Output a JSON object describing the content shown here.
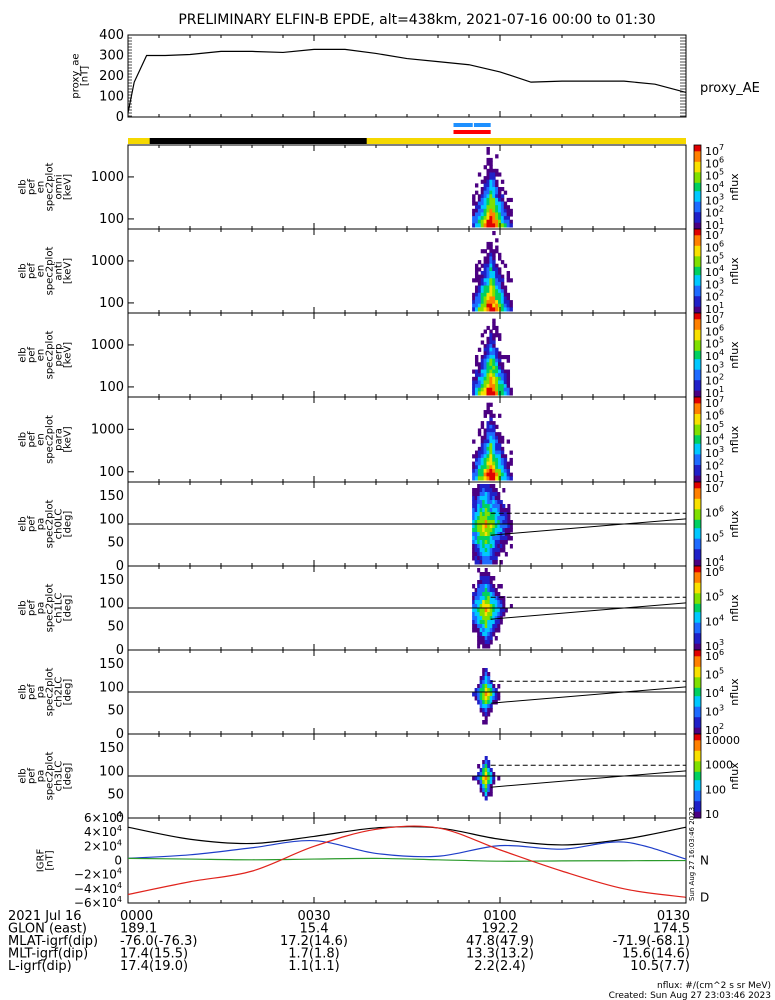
{
  "title": "PRELIMINARY ELFIN-B EPDE, alt=438km, 2021-07-16 00:00 to 01:30",
  "x_ticks": [
    "0000",
    "0030",
    "0100",
    "0130"
  ],
  "colors": {
    "yellow_bar": "#f5d800",
    "black_bar": "#000000",
    "blue_bar": "#1e90ff",
    "red_bar": "#ff0000",
    "igrf_n": "#2b9a2b",
    "igrf_d": "#e0231c",
    "igrf_blue": "#1f3ec9",
    "igrf_black": "#000000"
  },
  "ae_panel": {
    "ylabel": "proxy_ae\n[nT]",
    "yticks": [
      "400",
      "300",
      "200",
      "100",
      "0"
    ],
    "legend": "proxy_AE"
  },
  "spectro_panels": [
    {
      "id": "omni",
      "ylabel": "elb\npef\nen\nspec2plot\nomni\n[keV]",
      "yticks": [
        "1000",
        "100"
      ],
      "cbar_label": "nflux",
      "cbar_ticks": [
        "10^7",
        "10^6",
        "10^5",
        "10^4",
        "10^3",
        "10^2",
        "10^1"
      ]
    },
    {
      "id": "anti",
      "ylabel": "elb\npef\nen\nspec2plot\nanti\n[keV]",
      "yticks": [
        "1000",
        "100"
      ],
      "cbar_label": "nflux",
      "cbar_ticks": [
        "10^7",
        "10^6",
        "10^5",
        "10^4",
        "10^3",
        "10^2",
        "10^1"
      ]
    },
    {
      "id": "perp",
      "ylabel": "elb\npef\nen\nspec2plot\nperp\n[keV]",
      "yticks": [
        "1000",
        "100"
      ],
      "cbar_label": "nflux",
      "cbar_ticks": [
        "10^7",
        "10^6",
        "10^5",
        "10^4",
        "10^3",
        "10^2",
        "10^1"
      ]
    },
    {
      "id": "para",
      "ylabel": "elb\npef\nen\nspec2plot\npara\n[keV]",
      "yticks": [
        "1000",
        "100"
      ],
      "cbar_label": "nflux",
      "cbar_ticks": [
        "10^7",
        "10^6",
        "10^5",
        "10^4",
        "10^3",
        "10^2",
        "10^1"
      ]
    }
  ],
  "pa_panels": [
    {
      "id": "ch0LC",
      "ylabel": "elb\npef\npa\nspec2plot\nch0LC\n[deg]",
      "yticks": [
        "150",
        "100",
        "50",
        "0"
      ],
      "cbar_label": "nflux",
      "cbar_ticks": [
        "10^7",
        "10^6",
        "10^5",
        "10^4"
      ]
    },
    {
      "id": "ch1LC",
      "ylabel": "elb\npef\npa\nspec2plot\nch1LC\n[deg]",
      "yticks": [
        "150",
        "100",
        "50",
        "0"
      ],
      "cbar_label": "nflux",
      "cbar_ticks": [
        "10^6",
        "10^5",
        "10^4",
        "10^3"
      ]
    },
    {
      "id": "ch2LC",
      "ylabel": "elb\npef\npa\nspec2plot\nch2LC\n[deg]",
      "yticks": [
        "150",
        "100",
        "50",
        "0"
      ],
      "cbar_label": "nflux",
      "cbar_ticks": [
        "10^6",
        "10^5",
        "10^4",
        "10^3",
        "10^2"
      ]
    },
    {
      "id": "ch3LC",
      "ylabel": "elb\npef\npa\nspec2plot\nch3LC\n[deg]",
      "yticks": [
        "150",
        "100",
        "50",
        "0"
      ],
      "cbar_label": "nflux",
      "cbar_ticks": [
        "10000",
        "1000",
        "100",
        "10"
      ]
    }
  ],
  "igrf_panel": {
    "ylabel": "IGRF\n[nT]",
    "yticks": [
      "6×10^4",
      "4×10^4",
      "2×10^4",
      "0",
      "−2×10^4",
      "−4×10^4",
      "−6×10^4"
    ],
    "legend": [
      "N",
      "D"
    ],
    "side_text": "Sun Aug 27 16:03:46 2023"
  },
  "footer": {
    "rows": [
      {
        "label": "2021 Jul 16",
        "values": [
          "0000",
          "0030",
          "0100",
          "0130"
        ]
      },
      {
        "label": "GLON (east)",
        "values": [
          "189.1",
          "15.4",
          "192.2",
          "174.5"
        ]
      },
      {
        "label": "MLAT-igrf(dip)",
        "values": [
          "-76.0(-76.3)",
          "17.2(14.6)",
          "47.8(47.9)",
          "-71.9(-68.1)"
        ]
      },
      {
        "label": "MLT-igrf(dip)",
        "values": [
          "17.4(15.5)",
          "1.7(1.8)",
          "13.3(13.2)",
          "15.6(14.6)"
        ]
      },
      {
        "label": "L-igrf(dip)",
        "values": [
          "17.4(19.0)",
          "1.1(1.1)",
          "2.2(2.4)",
          "10.5(7.7)"
        ]
      }
    ],
    "units_note": "nflux: #/(cm^2 s sr MeV)",
    "created": "Created: Sun Aug 27 23:03:46 2023"
  },
  "chart_data": [
    {
      "type": "line",
      "name": "proxy_AE",
      "x_minutes": [
        0,
        1,
        3,
        6,
        10,
        15,
        20,
        25,
        30,
        35,
        40,
        45,
        50,
        55,
        60,
        65,
        70,
        75,
        80,
        85,
        90
      ],
      "values": [
        20,
        170,
        300,
        300,
        305,
        320,
        320,
        315,
        330,
        330,
        310,
        285,
        270,
        255,
        220,
        170,
        175,
        175,
        175,
        160,
        120
      ],
      "ylim": [
        0,
        400
      ],
      "xlim_minutes": [
        0,
        90
      ]
    },
    {
      "type": "heatmap",
      "name": "pef energy spectrograms (omni/anti/perp/para)",
      "xlim_minutes": [
        0,
        90
      ],
      "ylim_keV": [
        50,
        7000
      ],
      "y_scale": "log",
      "active_interval_minutes": [
        55.5,
        62.0
      ],
      "color_range_nflux": [
        10,
        10000000
      ],
      "color_scale": "log"
    },
    {
      "type": "heatmap",
      "name": "pef pitch-angle spectrograms (ch0LC–ch3LC)",
      "xlim_minutes": [
        0,
        90
      ],
      "ylim_deg": [
        0,
        180
      ],
      "active_interval_minutes": [
        55.5,
        62.0
      ],
      "reference_line_deg": 90,
      "loss_cone_dashed_deg": 113,
      "loss_cone_solid_deg": [
        66,
        101
      ]
    },
    {
      "type": "line",
      "name": "IGRF",
      "x_minutes": [
        0,
        10,
        20,
        30,
        40,
        50,
        60,
        70,
        80,
        90
      ],
      "series": [
        {
          "name": "black",
          "values": [
            47000,
            30000,
            24000,
            34000,
            46000,
            46000,
            30000,
            22000,
            30000,
            47000
          ]
        },
        {
          "name": "blue",
          "values": [
            3000,
            8000,
            18000,
            28000,
            10000,
            6000,
            21000,
            16000,
            26000,
            2000
          ]
        },
        {
          "name": "N",
          "values": [
            3000,
            2000,
            1000,
            2000,
            3000,
            1000,
            -1000,
            -500,
            -300,
            -100
          ]
        },
        {
          "name": "D",
          "values": [
            -48000,
            -30000,
            -15000,
            20000,
            44000,
            46000,
            15000,
            -15000,
            -40000,
            -52000
          ]
        }
      ],
      "ylim": [
        -60000,
        60000
      ]
    }
  ]
}
